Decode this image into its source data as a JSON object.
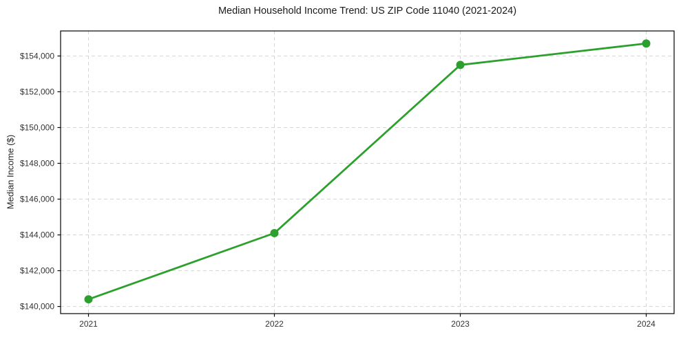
{
  "chart_data": {
    "type": "line",
    "title": "Median Household Income Trend: US ZIP Code 11040 (2021-2024)",
    "xlabel": "",
    "ylabel": "Median Income ($)",
    "x": [
      2021,
      2022,
      2023,
      2024
    ],
    "values": [
      140400,
      144100,
      153500,
      154700
    ],
    "xticks": [
      {
        "value": 2021,
        "label": "2021"
      },
      {
        "value": 2022,
        "label": "2022"
      },
      {
        "value": 2023,
        "label": "2023"
      },
      {
        "value": 2024,
        "label": "2024"
      }
    ],
    "yticks": [
      {
        "value": 140000,
        "label": "$140,000"
      },
      {
        "value": 142000,
        "label": "$142,000"
      },
      {
        "value": 144000,
        "label": "$144,000"
      },
      {
        "value": 146000,
        "label": "$146,000"
      },
      {
        "value": 148000,
        "label": "$148,000"
      },
      {
        "value": 150000,
        "label": "$150,000"
      },
      {
        "value": 152000,
        "label": "$152,000"
      },
      {
        "value": 154000,
        "label": "$154,000"
      }
    ],
    "xlim": [
      2020.85,
      2024.15
    ],
    "ylim": [
      139600,
      155400
    ],
    "grid": true,
    "grid_style": "dashed",
    "legend": "none",
    "marker": "circle",
    "marker_size": 6,
    "line_width": 2.8,
    "line_color": "#2ca02c",
    "grid_color": "#d4d4d4",
    "spine_color": "#000000",
    "text_color": "#333333",
    "background": "#ffffff"
  }
}
